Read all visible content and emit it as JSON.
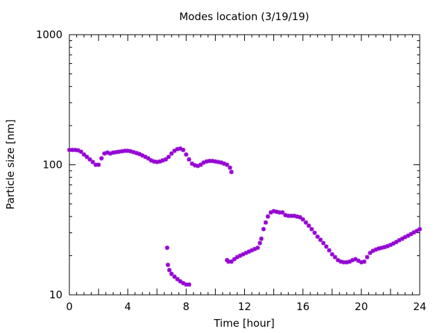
{
  "chart_data": {
    "type": "scatter",
    "title": "Modes location (3/19/19)",
    "xlabel": "Time [hour]",
    "ylabel": "Particle size [nm]",
    "xlim": [
      0,
      24
    ],
    "ylim": [
      10,
      1000
    ],
    "yscale": "log",
    "grid": false,
    "legend": "none",
    "marker_color": "#9400d3",
    "x_ticks": [
      0,
      4,
      8,
      12,
      16,
      20,
      24
    ],
    "x_tick_labels": [
      "0",
      "4",
      "8",
      "12",
      "16",
      "20",
      "24"
    ],
    "y_ticks": [
      10,
      100,
      1000
    ],
    "y_tick_labels": [
      "10",
      "100",
      "1000"
    ],
    "series": [
      {
        "points": [
          [
            0.0,
            130
          ],
          [
            0.2,
            130
          ],
          [
            0.4,
            130
          ],
          [
            0.6,
            129
          ],
          [
            0.8,
            126
          ],
          [
            1.0,
            120
          ],
          [
            1.2,
            115
          ],
          [
            1.4,
            110
          ],
          [
            1.6,
            105
          ],
          [
            1.8,
            100
          ],
          [
            2.0,
            100
          ],
          [
            2.2,
            112
          ],
          [
            2.4,
            122
          ],
          [
            2.6,
            124
          ],
          [
            2.8,
            122
          ],
          [
            3.0,
            124
          ],
          [
            3.2,
            125
          ],
          [
            3.4,
            126
          ],
          [
            3.6,
            127
          ],
          [
            3.8,
            128
          ],
          [
            4.0,
            128
          ],
          [
            4.2,
            127
          ],
          [
            4.4,
            125
          ],
          [
            4.6,
            123
          ],
          [
            4.8,
            121
          ],
          [
            5.0,
            118
          ],
          [
            5.2,
            115
          ],
          [
            5.4,
            112
          ],
          [
            5.6,
            108
          ],
          [
            5.8,
            106
          ],
          [
            6.0,
            105
          ],
          [
            6.2,
            106
          ],
          [
            6.4,
            108
          ],
          [
            6.6,
            110
          ],
          [
            6.8,
            115
          ],
          [
            7.0,
            122
          ],
          [
            7.2,
            128
          ],
          [
            7.4,
            132
          ],
          [
            7.6,
            133
          ],
          [
            7.8,
            130
          ],
          [
            8.0,
            120
          ],
          [
            8.2,
            110
          ],
          [
            8.4,
            102
          ],
          [
            8.6,
            99
          ],
          [
            8.8,
            98
          ],
          [
            9.0,
            100
          ],
          [
            9.2,
            104
          ],
          [
            9.4,
            106
          ],
          [
            9.6,
            107
          ],
          [
            9.8,
            107
          ],
          [
            10.0,
            106
          ],
          [
            10.2,
            105
          ],
          [
            10.4,
            104
          ],
          [
            10.6,
            102
          ],
          [
            10.8,
            100
          ],
          [
            11.0,
            95
          ],
          [
            11.1,
            88
          ]
        ]
      },
      {
        "points": [
          [
            6.7,
            23
          ],
          [
            6.75,
            17
          ],
          [
            6.85,
            15.5
          ],
          [
            7.0,
            14.5
          ],
          [
            7.2,
            13.8
          ],
          [
            7.4,
            13.2
          ],
          [
            7.6,
            12.7
          ],
          [
            7.8,
            12.3
          ],
          [
            8.0,
            12.0
          ],
          [
            8.2,
            12.0
          ]
        ]
      },
      {
        "points": [
          [
            10.8,
            18.5
          ],
          [
            10.9,
            18.0
          ],
          [
            11.1,
            18.0
          ],
          [
            11.3,
            18.8
          ],
          [
            11.5,
            19.5
          ],
          [
            11.7,
            20.0
          ],
          [
            11.9,
            20.5
          ],
          [
            12.1,
            21.0
          ],
          [
            12.3,
            21.5
          ],
          [
            12.5,
            22.0
          ],
          [
            12.7,
            22.5
          ],
          [
            12.9,
            23.0
          ],
          [
            13.05,
            25.0
          ],
          [
            13.15,
            27.0
          ],
          [
            13.3,
            32.0
          ],
          [
            13.45,
            36.0
          ],
          [
            13.6,
            40.0
          ],
          [
            13.8,
            43.0
          ],
          [
            14.0,
            44.0
          ],
          [
            14.2,
            43.5
          ],
          [
            14.4,
            43.0
          ],
          [
            14.6,
            43.0
          ],
          [
            14.8,
            41.0
          ],
          [
            15.0,
            40.5
          ],
          [
            15.2,
            40.5
          ],
          [
            15.4,
            40.5
          ],
          [
            15.6,
            40.0
          ],
          [
            15.8,
            39.5
          ],
          [
            16.0,
            38.0
          ],
          [
            16.2,
            36.0
          ],
          [
            16.4,
            34.0
          ],
          [
            16.6,
            32.0
          ],
          [
            16.8,
            30.0
          ],
          [
            17.0,
            28.0
          ],
          [
            17.2,
            26.5
          ],
          [
            17.4,
            25.0
          ],
          [
            17.6,
            23.5
          ],
          [
            17.8,
            22.0
          ],
          [
            18.0,
            20.5
          ],
          [
            18.2,
            19.5
          ],
          [
            18.4,
            18.5
          ],
          [
            18.6,
            18.0
          ],
          [
            18.8,
            17.8
          ],
          [
            19.0,
            17.8
          ],
          [
            19.2,
            18.0
          ],
          [
            19.4,
            18.5
          ],
          [
            19.6,
            18.8
          ],
          [
            19.8,
            18.3
          ],
          [
            20.0,
            17.8
          ],
          [
            20.2,
            18.0
          ],
          [
            20.4,
            19.5
          ],
          [
            20.6,
            21.0
          ],
          [
            20.8,
            21.8
          ],
          [
            21.0,
            22.3
          ],
          [
            21.2,
            22.7
          ],
          [
            21.4,
            23.0
          ],
          [
            21.6,
            23.3
          ],
          [
            21.8,
            23.7
          ],
          [
            22.0,
            24.2
          ],
          [
            22.2,
            24.8
          ],
          [
            22.4,
            25.5
          ],
          [
            22.6,
            26.3
          ],
          [
            22.8,
            27.0
          ],
          [
            23.0,
            27.8
          ],
          [
            23.2,
            28.5
          ],
          [
            23.4,
            29.3
          ],
          [
            23.6,
            30.2
          ],
          [
            23.8,
            31.0
          ],
          [
            24.0,
            32.0
          ]
        ]
      }
    ]
  }
}
